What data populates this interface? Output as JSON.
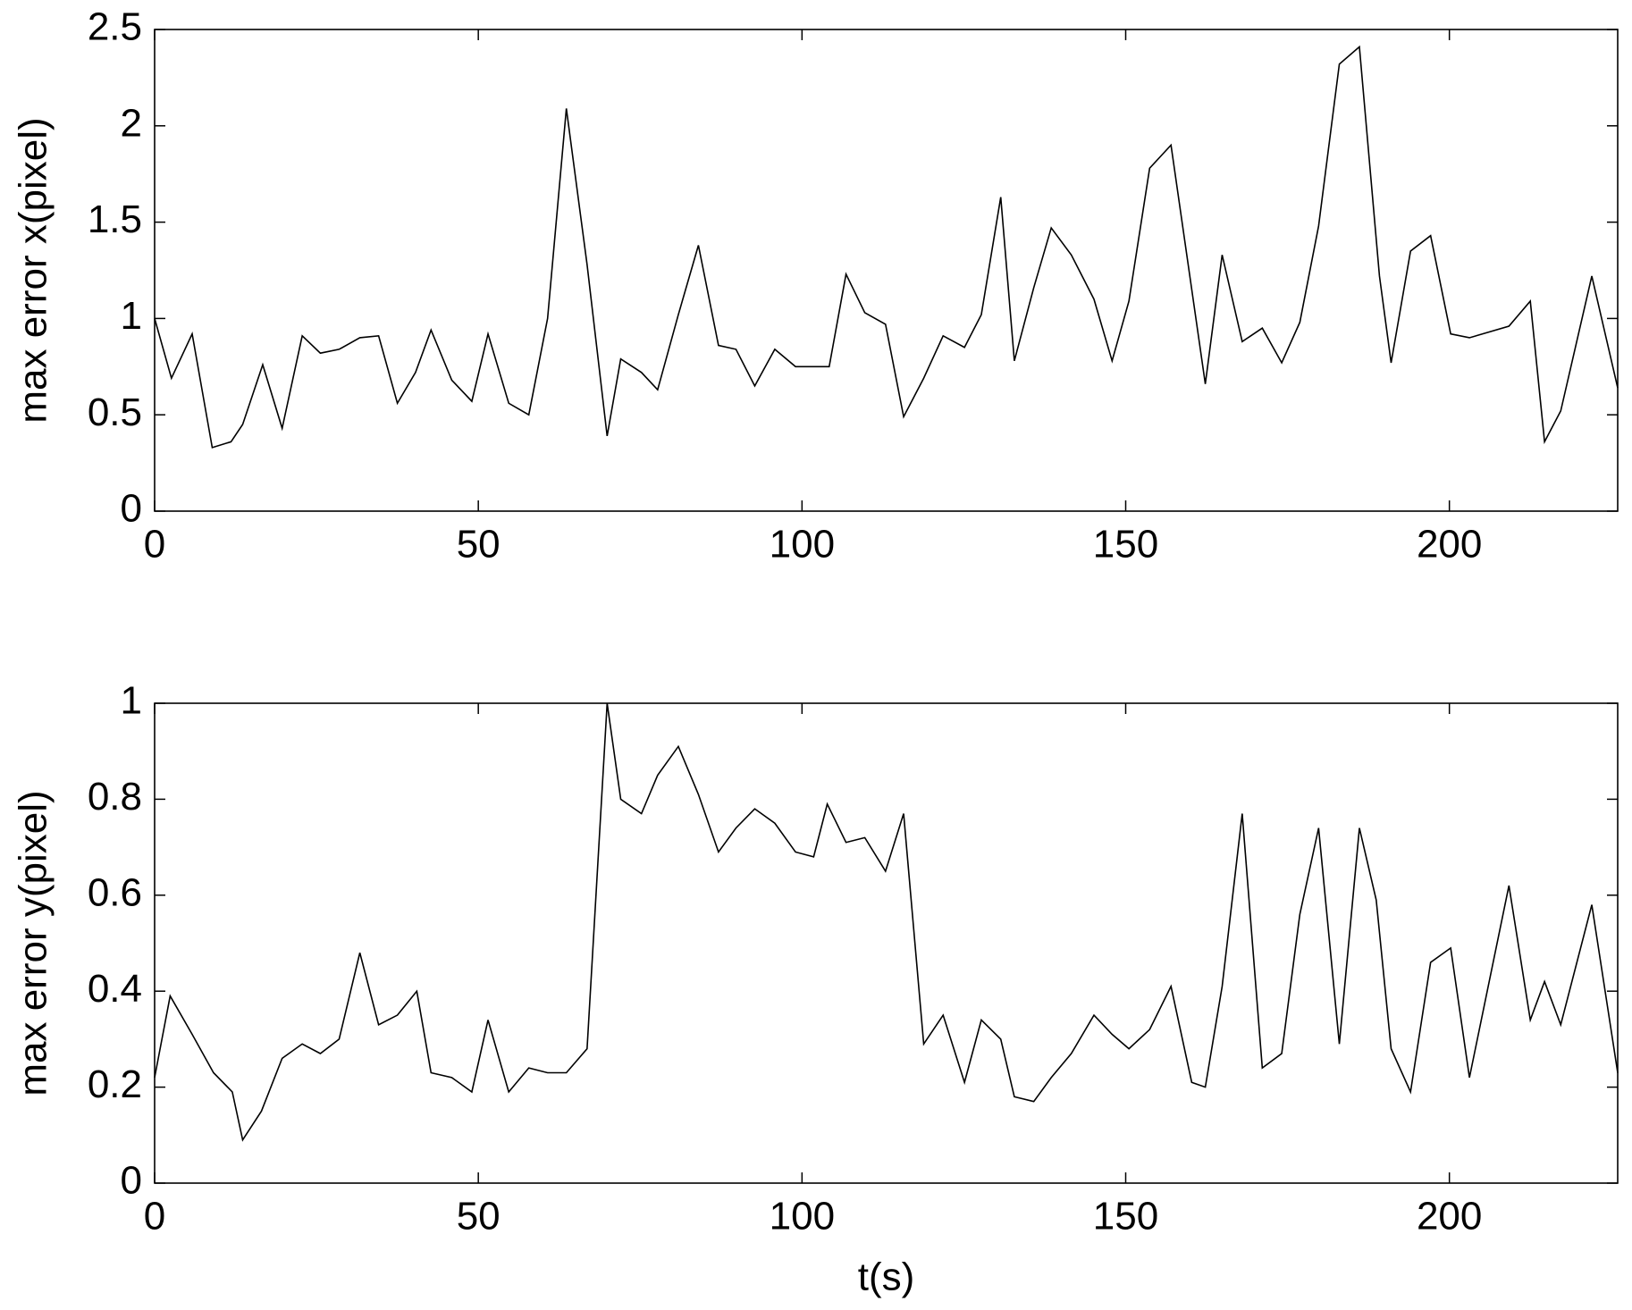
{
  "chart_data": [
    {
      "type": "line",
      "ylabel": "max error x(pixel)",
      "xlim": [
        0,
        226
      ],
      "xticks": [
        0,
        50,
        100,
        150,
        200
      ],
      "ylim": [
        0,
        2.5
      ],
      "yticks": [
        0,
        0.5,
        1,
        1.5,
        2,
        2.5
      ],
      "series": [
        {
          "color": "#000000",
          "x": [
            0,
            2.6,
            5.8,
            8.9,
            11.8,
            13.6,
            16.7,
            19.7,
            22.8,
            25.6,
            28.5,
            31.7,
            34.6,
            37.5,
            40.3,
            42.7,
            45.9,
            49.0,
            51.5,
            54.7,
            57.8,
            60.7,
            63.6,
            66.8,
            69.9,
            72.0,
            75.2,
            77.7,
            80.9,
            84.0,
            87.1,
            89.8,
            92.7,
            95.8,
            99.0,
            101.8,
            104.2,
            106.8,
            109.7,
            112.9,
            115.7,
            118.8,
            121.8,
            125.1,
            127.7,
            130.7,
            132.8,
            135.8,
            138.5,
            141.6,
            145.1,
            147.9,
            150.5,
            153.7,
            157.0,
            162.3,
            164.9,
            168.0,
            171.1,
            174.1,
            176.9,
            179.8,
            183.0,
            186.1,
            189.2,
            191.0,
            194.0,
            197.1,
            200.2,
            203.1,
            209.2,
            212.5,
            214.7,
            217.2,
            222.0,
            226
          ],
          "values": [
            1.0,
            0.69,
            0.92,
            0.33,
            0.36,
            0.45,
            0.76,
            0.43,
            0.91,
            0.82,
            0.84,
            0.9,
            0.91,
            0.56,
            0.72,
            0.94,
            0.68,
            0.57,
            0.92,
            0.56,
            0.5,
            1.0,
            2.09,
            1.28,
            0.39,
            0.79,
            0.72,
            0.63,
            1.02,
            1.38,
            0.86,
            0.84,
            0.65,
            0.84,
            0.75,
            0.75,
            0.75,
            1.23,
            1.03,
            0.97,
            0.49,
            0.69,
            0.91,
            0.85,
            1.02,
            1.63,
            0.78,
            1.16,
            1.47,
            1.33,
            1.1,
            0.78,
            1.09,
            1.78,
            1.9,
            0.66,
            1.33,
            0.88,
            0.95,
            0.77,
            0.98,
            1.48,
            2.32,
            2.41,
            1.22,
            0.77,
            1.35,
            1.43,
            0.92,
            0.9,
            0.96,
            1.09,
            0.36,
            0.52,
            1.22,
            0.64
          ]
        }
      ]
    },
    {
      "type": "line",
      "ylabel": "max error y(pixel)",
      "xlabel": "t(s)",
      "xlim": [
        0,
        226
      ],
      "xticks": [
        0,
        50,
        100,
        150,
        200
      ],
      "ylim": [
        0,
        1
      ],
      "yticks": [
        0,
        0.2,
        0.4,
        0.6,
        0.8,
        1
      ],
      "series": [
        {
          "color": "#000000",
          "x": [
            0,
            2.4,
            5.8,
            9.1,
            12.0,
            13.6,
            16.5,
            19.7,
            22.8,
            25.6,
            28.5,
            31.7,
            34.6,
            37.5,
            40.5,
            42.7,
            45.9,
            49.0,
            51.5,
            54.7,
            57.8,
            60.7,
            63.6,
            66.8,
            69.9,
            72.0,
            75.2,
            77.7,
            80.9,
            84.0,
            87.1,
            89.8,
            92.7,
            95.8,
            99.0,
            101.8,
            103.9,
            106.8,
            109.7,
            112.9,
            115.7,
            118.8,
            121.8,
            125.1,
            127.7,
            130.7,
            132.8,
            135.8,
            138.5,
            141.6,
            145.1,
            147.9,
            150.5,
            153.7,
            157.0,
            160.2,
            162.3,
            164.9,
            168.0,
            171.1,
            174.1,
            176.9,
            179.8,
            183.0,
            186.1,
            188.7,
            191.0,
            194.0,
            197.1,
            200.2,
            203.1,
            209.2,
            212.5,
            214.7,
            217.2,
            222.0,
            226
          ],
          "values": [
            0.22,
            0.39,
            0.31,
            0.23,
            0.19,
            0.09,
            0.15,
            0.26,
            0.29,
            0.27,
            0.3,
            0.48,
            0.33,
            0.35,
            0.4,
            0.23,
            0.22,
            0.19,
            0.34,
            0.19,
            0.24,
            0.23,
            0.23,
            0.28,
            1.0,
            0.8,
            0.77,
            0.85,
            0.91,
            0.81,
            0.69,
            0.74,
            0.78,
            0.75,
            0.69,
            0.68,
            0.79,
            0.71,
            0.72,
            0.65,
            0.77,
            0.29,
            0.35,
            0.21,
            0.34,
            0.3,
            0.18,
            0.17,
            0.22,
            0.27,
            0.35,
            0.31,
            0.28,
            0.32,
            0.41,
            0.21,
            0.2,
            0.41,
            0.77,
            0.24,
            0.27,
            0.56,
            0.74,
            0.29,
            0.74,
            0.59,
            0.28,
            0.19,
            0.46,
            0.49,
            0.22,
            0.62,
            0.34,
            0.42,
            0.33,
            0.58,
            0.23
          ]
        }
      ]
    }
  ]
}
